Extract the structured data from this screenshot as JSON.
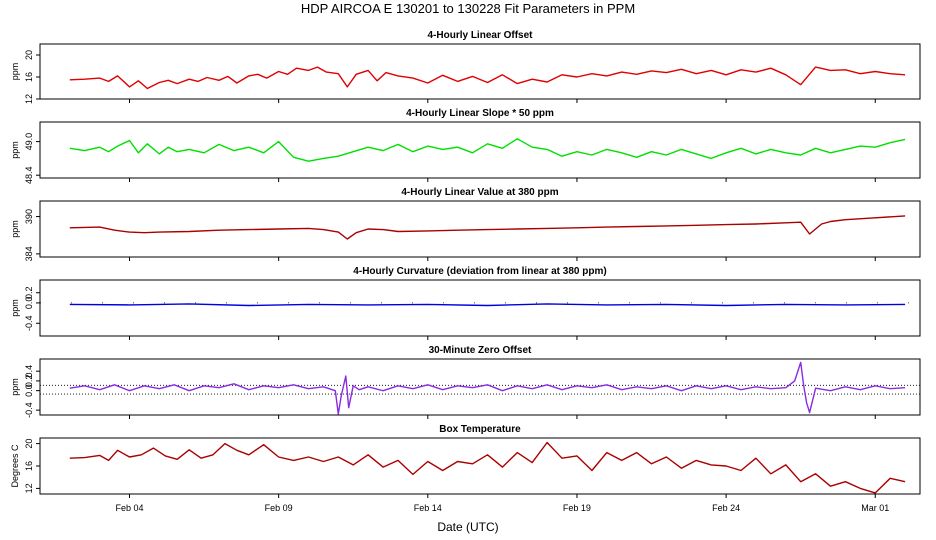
{
  "header": {
    "title": "HDP    AIRCOA E    130201 to 130228    Fit Parameters in PPM"
  },
  "colors": {
    "offset": "#e00000",
    "slope": "#00e000",
    "value": "#aa0000",
    "curvature": "#0000dd",
    "zero_offset": "#8a2be2",
    "temperature": "#aa0000"
  },
  "chart_data": [
    {
      "type": "line",
      "title": "4-Hourly Linear Offset",
      "ylabel": "ppm",
      "ylim": [
        12,
        22
      ],
      "yticks": [
        12,
        16,
        20
      ],
      "xlim": [
        0.0,
        29.5
      ],
      "series": [
        {
          "name": "offset",
          "x": [
            1.0,
            1.5,
            2.0,
            2.3,
            2.6,
            3.0,
            3.3,
            3.6,
            4.0,
            4.3,
            4.6,
            5.0,
            5.3,
            5.6,
            6.0,
            6.3,
            6.6,
            7.0,
            7.3,
            7.6,
            8.0,
            8.3,
            8.6,
            9.0,
            9.3,
            9.6,
            10.0,
            10.3,
            10.6,
            11.0,
            11.3,
            11.6,
            12.0,
            12.5,
            13.0,
            13.5,
            14.0,
            14.5,
            15.0,
            15.5,
            16.0,
            16.5,
            17.0,
            17.5,
            18.0,
            18.5,
            19.0,
            19.5,
            20.0,
            20.5,
            21.0,
            21.5,
            22.0,
            22.5,
            23.0,
            23.5,
            24.0,
            24.5,
            25.0,
            25.5,
            26.0,
            26.5,
            27.0,
            27.5,
            28.0,
            28.5,
            29.0
          ],
          "values": [
            15.5,
            15.6,
            15.8,
            15.2,
            16.2,
            14.2,
            15.3,
            13.9,
            15.0,
            15.4,
            14.8,
            15.6,
            15.2,
            15.9,
            15.4,
            16.1,
            14.9,
            16.2,
            16.5,
            15.8,
            17.0,
            16.5,
            17.6,
            17.2,
            17.8,
            16.9,
            16.6,
            14.2,
            16.5,
            17.2,
            15.3,
            16.8,
            16.2,
            15.8,
            14.9,
            16.3,
            15.2,
            16.1,
            15.0,
            16.4,
            14.8,
            15.6,
            15.1,
            16.4,
            16.0,
            16.6,
            16.2,
            16.9,
            16.5,
            17.1,
            16.8,
            17.4,
            16.6,
            17.2,
            16.4,
            17.3,
            16.9,
            17.6,
            16.4,
            14.6,
            17.8,
            17.2,
            17.3,
            16.6,
            17.0,
            16.6,
            16.4
          ]
        }
      ]
    },
    {
      "type": "line",
      "title": "4-Hourly Linear Slope * 50 ppm",
      "ylabel": "ppm",
      "ylim": [
        48.35,
        49.35
      ],
      "yticks": [
        48.4,
        49.0
      ],
      "yticklabels": [
        "48.4",
        "49.0"
      ],
      "xlim": [
        0.0,
        29.5
      ],
      "series": [
        {
          "name": "slope",
          "x": [
            1.0,
            1.5,
            2.0,
            2.3,
            2.6,
            3.0,
            3.3,
            3.6,
            4.0,
            4.3,
            4.6,
            5.0,
            5.5,
            6.0,
            6.5,
            7.0,
            7.5,
            8.0,
            8.5,
            9.0,
            9.5,
            10.0,
            10.5,
            11.0,
            11.5,
            12.0,
            12.5,
            13.0,
            13.5,
            14.0,
            14.5,
            15.0,
            15.5,
            16.0,
            16.5,
            17.0,
            17.5,
            18.0,
            18.5,
            19.0,
            19.5,
            20.0,
            20.5,
            21.0,
            21.5,
            22.0,
            22.5,
            23.0,
            23.5,
            24.0,
            24.5,
            25.0,
            25.5,
            26.0,
            26.5,
            27.0,
            27.5,
            28.0,
            28.5,
            29.0
          ],
          "values": [
            48.88,
            48.84,
            48.9,
            48.82,
            48.92,
            49.02,
            48.8,
            48.96,
            48.78,
            48.9,
            48.82,
            48.86,
            48.8,
            48.95,
            48.84,
            48.9,
            48.8,
            49.0,
            48.72,
            48.65,
            48.7,
            48.74,
            48.82,
            48.9,
            48.84,
            48.95,
            48.82,
            48.92,
            48.86,
            48.9,
            48.8,
            48.96,
            48.88,
            49.05,
            48.9,
            48.86,
            48.74,
            48.82,
            48.76,
            48.86,
            48.8,
            48.72,
            48.82,
            48.76,
            48.86,
            48.78,
            48.7,
            48.8,
            48.88,
            48.78,
            48.86,
            48.8,
            48.76,
            48.88,
            48.8,
            48.86,
            48.92,
            48.9,
            48.98,
            49.04
          ]
        }
      ]
    },
    {
      "type": "line",
      "title": "4-Hourly Linear Value at 380 ppm",
      "ylabel": "ppm",
      "ylim": [
        383.5,
        392.5
      ],
      "yticks": [
        384,
        390
      ],
      "xlim": [
        0.0,
        29.5
      ],
      "series": [
        {
          "name": "value",
          "x": [
            1.0,
            2.0,
            2.5,
            3.0,
            3.5,
            4.0,
            5.0,
            6.0,
            7.0,
            8.0,
            9.0,
            9.5,
            10.0,
            10.3,
            10.6,
            11.0,
            11.5,
            12.0,
            13.0,
            14.0,
            15.0,
            16.0,
            17.0,
            18.0,
            19.0,
            20.0,
            21.0,
            22.0,
            23.0,
            24.0,
            25.0,
            25.5,
            25.8,
            26.2,
            26.5,
            27.0,
            28.0,
            29.0
          ],
          "values": [
            388.2,
            388.3,
            387.8,
            387.5,
            387.4,
            387.5,
            387.6,
            387.8,
            387.9,
            388.0,
            388.1,
            387.9,
            387.5,
            386.4,
            387.4,
            388.0,
            387.9,
            387.6,
            387.7,
            387.8,
            387.9,
            388.0,
            388.1,
            388.2,
            388.3,
            388.4,
            388.5,
            388.6,
            388.7,
            388.8,
            389.0,
            389.1,
            387.2,
            388.8,
            389.2,
            389.5,
            389.8,
            390.1
          ]
        }
      ]
    },
    {
      "type": "line",
      "title": "4-Hourly Curvature (deviation from linear at 380 ppm)",
      "ylabel": "ppm",
      "ylim": [
        -0.65,
        0.45
      ],
      "yticks": [
        -0.4,
        0.0,
        0.2
      ],
      "yticklabels": [
        "-0.4",
        "0.0",
        "0.2"
      ],
      "xlim": [
        0.0,
        29.5
      ],
      "series": [
        {
          "name": "curvature",
          "x": [
            1.0,
            3.0,
            5.0,
            7.0,
            9.0,
            11.0,
            13.0,
            15.0,
            17.0,
            19.0,
            21.0,
            23.0,
            25.0,
            27.0,
            29.0
          ],
          "values": [
            -0.03,
            -0.04,
            -0.02,
            -0.05,
            -0.03,
            -0.04,
            -0.03,
            -0.05,
            -0.02,
            -0.04,
            -0.03,
            -0.05,
            -0.03,
            -0.04,
            -0.03
          ]
        }
      ]
    },
    {
      "type": "line",
      "title": "30-Minute Zero Offset",
      "ylabel": "ppm",
      "ylim": [
        -0.5,
        0.65
      ],
      "yticks": [
        -0.4,
        0.0,
        0.2,
        0.4
      ],
      "yticklabels": [
        "-0.4",
        "0.0",
        "0.2",
        "0.4"
      ],
      "reference_lines": [
        0.11,
        -0.07
      ],
      "xlim": [
        0.0,
        29.5
      ],
      "series": [
        {
          "name": "zero_offset",
          "x": [
            1.0,
            1.5,
            2.0,
            2.5,
            3.0,
            3.5,
            4.0,
            4.5,
            5.0,
            5.5,
            6.0,
            6.5,
            7.0,
            7.5,
            8.0,
            8.5,
            9.0,
            9.5,
            9.9,
            10.0,
            10.1,
            10.25,
            10.35,
            10.5,
            10.7,
            11.0,
            11.5,
            12.0,
            12.5,
            13.0,
            13.5,
            14.0,
            14.5,
            15.0,
            15.5,
            16.0,
            16.5,
            17.0,
            17.5,
            18.0,
            18.5,
            19.0,
            19.5,
            20.0,
            20.5,
            21.0,
            21.5,
            22.0,
            22.5,
            23.0,
            23.5,
            24.0,
            24.5,
            25.0,
            25.3,
            25.5,
            25.6,
            25.7,
            25.8,
            26.0,
            26.5,
            27.0,
            27.5,
            28.0,
            28.5,
            29.0
          ],
          "values": [
            0.05,
            0.1,
            0.02,
            0.12,
            0.0,
            0.1,
            0.04,
            0.12,
            0.0,
            0.1,
            0.06,
            0.14,
            0.02,
            0.1,
            0.06,
            0.12,
            0.04,
            0.08,
            0.0,
            -0.48,
            -0.1,
            0.3,
            -0.35,
            0.1,
            0.02,
            0.08,
            0.0,
            0.1,
            0.04,
            0.12,
            0.02,
            0.1,
            0.06,
            0.12,
            0.0,
            0.1,
            0.04,
            0.12,
            0.02,
            0.1,
            0.06,
            0.12,
            0.02,
            0.08,
            0.04,
            0.1,
            0.0,
            0.1,
            0.04,
            0.1,
            0.02,
            0.08,
            0.04,
            0.06,
            0.2,
            0.58,
            0.1,
            -0.25,
            -0.45,
            0.05,
            0.0,
            0.08,
            0.02,
            0.1,
            0.04,
            0.06
          ]
        }
      ]
    },
    {
      "type": "line",
      "title": "Box Temperature",
      "ylabel": "Degrees C",
      "ylim": [
        11,
        21
      ],
      "yticks": [
        12,
        16,
        20
      ],
      "xlim": [
        0.0,
        29.5
      ],
      "series": [
        {
          "name": "temperature",
          "x": [
            1.0,
            1.5,
            2.0,
            2.3,
            2.6,
            3.0,
            3.4,
            3.8,
            4.2,
            4.6,
            5.0,
            5.4,
            5.8,
            6.2,
            6.6,
            7.0,
            7.5,
            8.0,
            8.5,
            9.0,
            9.5,
            10.0,
            10.5,
            11.0,
            11.5,
            12.0,
            12.5,
            13.0,
            13.5,
            14.0,
            14.5,
            15.0,
            15.5,
            16.0,
            16.5,
            17.0,
            17.5,
            18.0,
            18.5,
            19.0,
            19.5,
            20.0,
            20.5,
            21.0,
            21.5,
            22.0,
            22.5,
            23.0,
            23.5,
            24.0,
            24.5,
            25.0,
            25.5,
            26.0,
            26.5,
            27.0,
            27.5,
            28.0,
            28.5,
            29.0
          ],
          "values": [
            17.4,
            17.5,
            17.9,
            17.0,
            18.8,
            17.6,
            18.0,
            19.2,
            17.8,
            17.2,
            18.9,
            17.4,
            18.0,
            20.0,
            18.8,
            18.0,
            19.8,
            17.6,
            17.0,
            17.6,
            16.8,
            17.6,
            16.2,
            18.0,
            15.8,
            17.0,
            14.5,
            16.8,
            15.2,
            16.8,
            16.4,
            18.0,
            15.8,
            18.4,
            16.6,
            20.2,
            17.4,
            17.8,
            15.2,
            18.4,
            17.0,
            18.4,
            16.4,
            17.6,
            15.6,
            17.0,
            16.2,
            16.0,
            15.2,
            17.4,
            14.6,
            16.2,
            13.2,
            14.6,
            12.4,
            13.2,
            12.0,
            11.2,
            13.8,
            13.2
          ]
        }
      ]
    }
  ],
  "xaxis": {
    "ticks": [
      3,
      8,
      13,
      18,
      23,
      28
    ],
    "labels": [
      "Feb 04",
      "Feb 09",
      "Feb 14",
      "Feb 19",
      "Feb 24",
      "Mar 01"
    ],
    "title": "Date (UTC)"
  }
}
